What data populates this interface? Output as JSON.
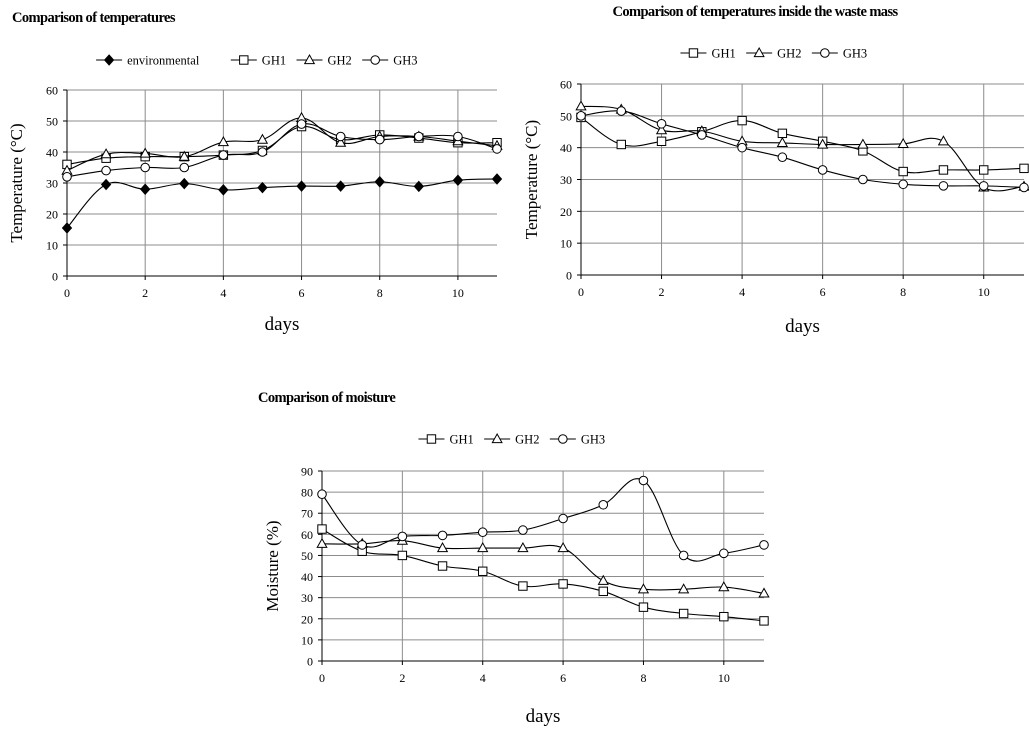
{
  "chart_data": [
    {
      "type": "line",
      "title": "Comparison of temperatures",
      "xlabel": "days",
      "ylabel": "Temperature (°C)",
      "xlim": [
        0,
        11
      ],
      "ylim": [
        0,
        60
      ],
      "xticks": [
        0,
        2,
        4,
        6,
        8,
        10
      ],
      "yticks": [
        0,
        10,
        20,
        30,
        40,
        50,
        60
      ],
      "grid": true,
      "legend_position": "top",
      "x": [
        0,
        1,
        2,
        3,
        4,
        5,
        6,
        7,
        8,
        9,
        10,
        11
      ],
      "series": [
        {
          "name": "environmental",
          "marker": "diamond-filled",
          "values": [
            15.5,
            29.5,
            28,
            29.8,
            27.8,
            28.5,
            29,
            29,
            30.4,
            28.9,
            30.9,
            31.3
          ]
        },
        {
          "name": "GH1",
          "marker": "square",
          "values": [
            36,
            38,
            38.5,
            38.5,
            39,
            40.5,
            48.2,
            44,
            45.5,
            44.5,
            43,
            43
          ]
        },
        {
          "name": "GH2",
          "marker": "triangle",
          "values": [
            34,
            39.3,
            39.5,
            38.5,
            43.2,
            44,
            51,
            43,
            45,
            45,
            43.5,
            42
          ]
        },
        {
          "name": "GH3",
          "marker": "circle",
          "values": [
            32,
            34,
            35,
            35,
            39,
            40,
            49,
            45,
            44,
            45,
            45,
            41
          ]
        }
      ]
    },
    {
      "type": "line",
      "title": "Comparison of temperatures inside the waste mass",
      "xlabel": "days",
      "ylabel": "Temperature (°C)",
      "xlim": [
        0,
        11
      ],
      "ylim": [
        0,
        60
      ],
      "xticks": [
        0,
        2,
        4,
        6,
        8,
        10
      ],
      "yticks": [
        0,
        10,
        20,
        30,
        40,
        50,
        60
      ],
      "grid": true,
      "legend_position": "top",
      "x": [
        0,
        1,
        2,
        3,
        4,
        5,
        6,
        7,
        8,
        9,
        10,
        11
      ],
      "series": [
        {
          "name": "GH1",
          "marker": "square",
          "values": [
            49.5,
            41,
            42,
            45,
            48.5,
            44.5,
            42,
            39,
            32.5,
            33,
            33,
            33.5
          ]
        },
        {
          "name": "GH2",
          "marker": "triangle",
          "values": [
            53,
            52,
            45.5,
            45.2,
            42,
            41.5,
            41,
            41,
            41.2,
            42,
            27.5,
            27.8
          ]
        },
        {
          "name": "GH3",
          "marker": "circle",
          "values": [
            50,
            51.5,
            47.5,
            44,
            40,
            37,
            33,
            30,
            28.5,
            28,
            28,
            27.5
          ]
        }
      ]
    },
    {
      "type": "line",
      "title": "Comparison of moisture",
      "xlabel": "days",
      "ylabel": "Moisture (%)",
      "xlim": [
        0,
        11
      ],
      "ylim": [
        0,
        90
      ],
      "xticks": [
        0,
        2,
        4,
        6,
        8,
        10
      ],
      "yticks": [
        0,
        10,
        20,
        30,
        40,
        50,
        60,
        70,
        80,
        90
      ],
      "grid": true,
      "legend_position": "top",
      "x": [
        0,
        1,
        2,
        3,
        4,
        5,
        6,
        7,
        8,
        9,
        10,
        11
      ],
      "series": [
        {
          "name": "GH1",
          "marker": "square",
          "values": [
            62.5,
            52,
            50,
            45,
            42.5,
            35.5,
            36.5,
            33,
            25.5,
            22.5,
            21,
            19
          ]
        },
        {
          "name": "GH2",
          "marker": "triangle",
          "values": [
            55.5,
            55.5,
            57,
            53.5,
            53.5,
            53.5,
            53.5,
            38,
            34,
            34,
            35,
            32
          ]
        },
        {
          "name": "GH3",
          "marker": "circle",
          "values": [
            79,
            55,
            59,
            59.5,
            61,
            62,
            67.5,
            74,
            85.5,
            50,
            51,
            55
          ]
        }
      ]
    }
  ]
}
